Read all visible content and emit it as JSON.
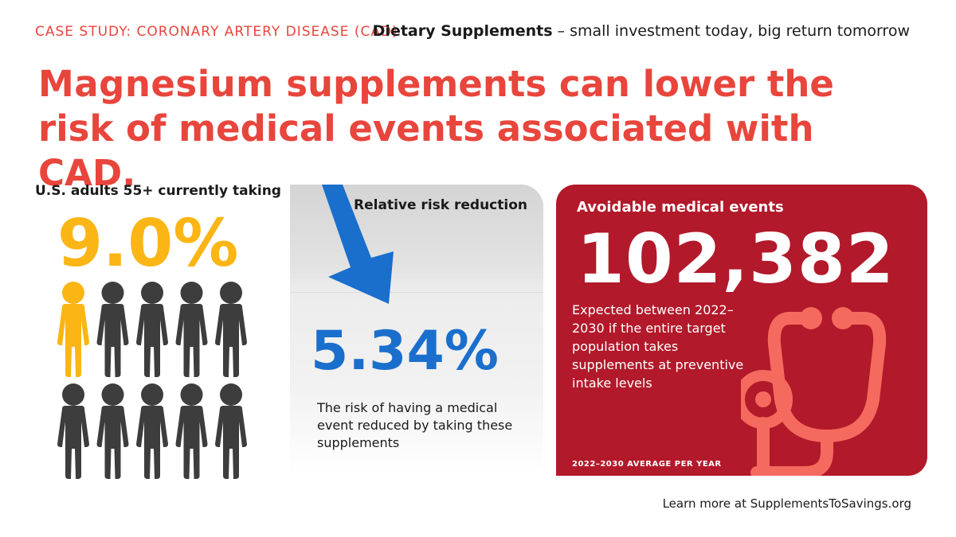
{
  "header": {
    "case_study": "CASE STUDY: CORONARY ARTERY DISEASE (CAD)",
    "tagline_bold": "Dietary Supplements",
    "tagline_rest": " – small investment today, big return tomorrow"
  },
  "headline": {
    "emphasis": "Magnesium",
    "rest": " supplements can lower the risk of medical events associated with CAD."
  },
  "adoption": {
    "label": "U.S. adults 55+ currently taking",
    "value": "9.0%",
    "highlighted_people": 1,
    "total_people": 10
  },
  "risk": {
    "title": "Relative risk reduction",
    "value": "5.34%",
    "caption": "The risk of having a medical event reduced by taking these supplements"
  },
  "events": {
    "title": "Avoidable medical events",
    "value": "102,382",
    "caption": "Expected between 2022–2030 if the entire target population takes supplements at preventive intake levels",
    "footnote": "2022–2030 AVERAGE PER YEAR",
    "icon": "stethoscope-icon"
  },
  "footer": {
    "text": "Learn more at SupplementsToSavings.org"
  },
  "colors": {
    "brand_red": "#e8453c",
    "yellow": "#fbb514",
    "dark_gray": "#3d3d3d",
    "blue": "#1a6fcc",
    "panel_red": "#b2192a",
    "steth_pink": "#f56a5e"
  }
}
